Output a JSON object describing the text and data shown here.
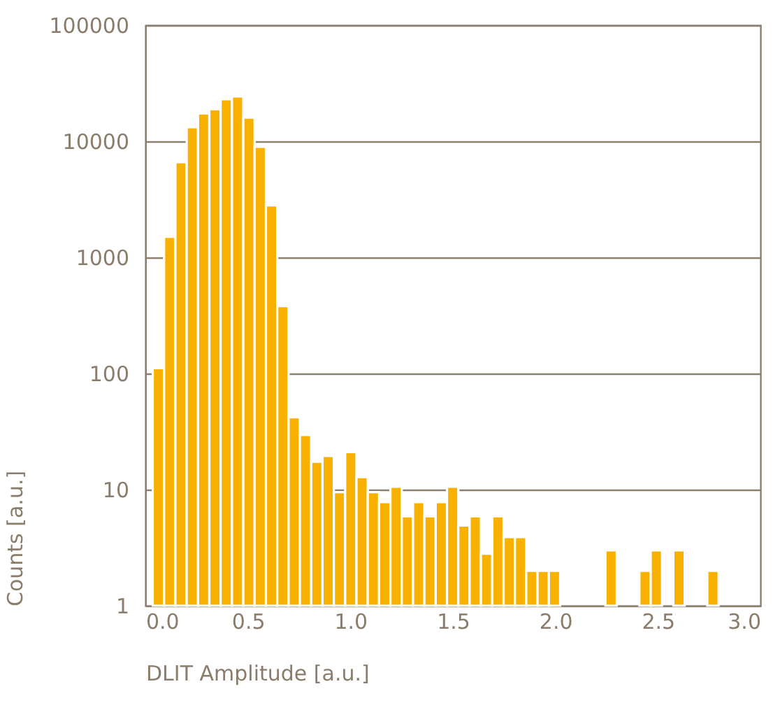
{
  "chart_data": {
    "type": "histogram",
    "xlabel": "DLIT Amplitude [a.u.]",
    "ylabel": "Counts [a.u.]",
    "bins": [
      0.036,
      0.0912,
      0.1464,
      0.2016,
      0.2568,
      0.312,
      0.3672,
      0.4224,
      0.4776,
      0.5328,
      0.588,
      0.6432,
      0.6984,
      0.7536,
      0.8088,
      0.864,
      0.9192,
      0.9744,
      1.0296,
      1.0848,
      1.14,
      1.1952,
      1.2504,
      1.3056,
      1.3608,
      1.416,
      1.4712,
      1.5264,
      1.5816,
      1.6368,
      1.692,
      1.7472,
      1.8024,
      1.8576,
      1.9128,
      1.968,
      2.0232,
      2.0784,
      2.1336,
      2.1888,
      2.244,
      2.2992,
      2.3544,
      2.4096,
      2.4648,
      2.52,
      2.5752,
      2.6304,
      2.6856,
      2.7408,
      2.796
    ],
    "values": [
      111,
      1500,
      6600,
      13200,
      17400,
      18900,
      23000,
      24300,
      16000,
      8950,
      2800,
      380,
      42,
      29.5,
      17.4,
      19.5,
      9.5,
      21,
      12.8,
      9.5,
      7.8,
      10.6,
      5.9,
      7.8,
      5.9,
      7.8,
      10.6,
      4.9,
      5.9,
      2.8,
      5.9,
      3.9,
      3.9,
      2,
      2,
      2,
      null,
      null,
      null,
      null,
      3,
      null,
      null,
      2,
      3,
      null,
      3,
      null,
      null,
      2
    ],
    "color": "#f8b100",
    "log": "y",
    "xlim": [
      0,
      3
    ],
    "xticks": [
      {
        "value": 0,
        "label": "0.0"
      },
      {
        "value": 0.5,
        "label": "0.5"
      },
      {
        "value": 1,
        "label": "1.0"
      },
      {
        "value": 1.5,
        "label": "1.5"
      },
      {
        "value": 2,
        "label": "2.0"
      },
      {
        "value": 2.5,
        "label": "2.5"
      },
      {
        "value": 3,
        "label": "3.0"
      }
    ],
    "ylim": [
      1,
      100000
    ],
    "yticks": [
      1,
      10,
      100,
      1000,
      10000,
      100000
    ],
    "grid": "y"
  }
}
